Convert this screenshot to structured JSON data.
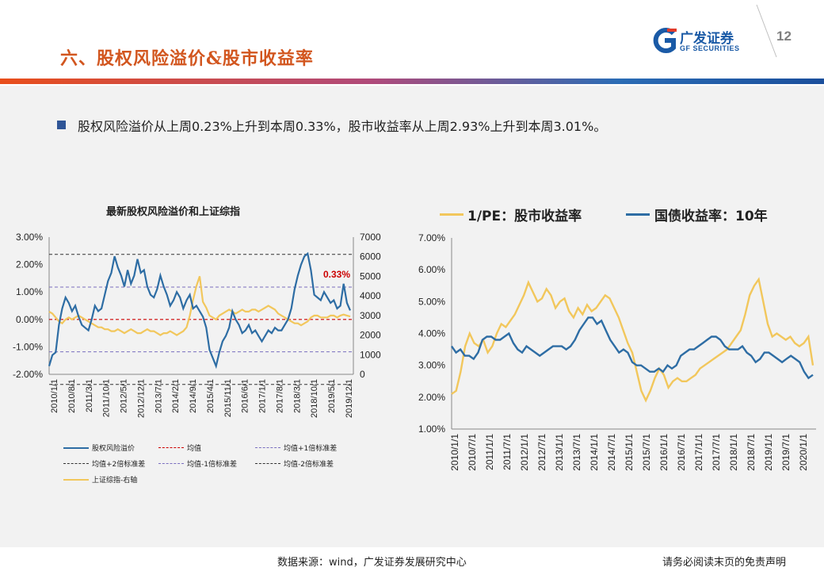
{
  "header": {
    "title": "六、股权风险溢价&股市收益率",
    "page_number": "12",
    "logo_cn": "广发证券",
    "logo_en": "GF SECURITIES"
  },
  "bullet": "股权风险溢价从上周0.23%上升到本周0.33%，股市收益率从上周2.93%上升到本周3.01%。",
  "footer": {
    "source": "数据来源：wind，广发证券发展研究中心",
    "disclaimer": "请务必阅读末页的免责声明"
  },
  "colors": {
    "blue": "#2e6da4",
    "yellow": "#f2c75c",
    "red": "#cc0000",
    "purple": "#7a6fbf",
    "black": "#333333",
    "title_orange": "#d2561f"
  },
  "chart_data": [
    {
      "type": "line",
      "title": "最新股权风险溢价和上证综指",
      "left_axis": {
        "ylim": [
          -0.02,
          0.03
        ],
        "ticks": [
          "-2.00%",
          "-1.00%",
          "0.00%",
          "1.00%",
          "2.00%",
          "3.00%"
        ]
      },
      "right_axis": {
        "ylim": [
          0,
          7000
        ],
        "ticks": [
          "0",
          "1000",
          "2000",
          "3000",
          "4000",
          "5000",
          "6000",
          "7000"
        ]
      },
      "x_ticks": [
        "2010/1/1",
        "2010/8/1",
        "2011/3/1",
        "2011/10/1",
        "2012/5/1",
        "2012/12/1",
        "2013/7/1",
        "2014/2/1",
        "2014/9/1",
        "2015/4/1",
        "2015/11/1",
        "2016/6/1",
        "2017/1/1",
        "2017/8/1",
        "2018/3/1",
        "2018/10/1",
        "2019/5/1",
        "2019/12/1"
      ],
      "annotation": "0.33%",
      "reference_lines": {
        "mean": 0.0,
        "plus1sd": 0.0118,
        "minus1sd": -0.0118,
        "plus2sd": 0.0237,
        "minus2sd": -0.0237
      },
      "legend": [
        "股权风险溢价",
        "均值",
        "均值+1倍标准差",
        "均值+2倍标准差",
        "均值-1倍标准差",
        "均值-2倍标准差",
        "上证综指-右轴"
      ],
      "series": [
        {
          "name": "股权风险溢价",
          "axis": "left",
          "values": [
            -0.017,
            -0.013,
            -0.012,
            -0.002,
            0.004,
            0.008,
            0.006,
            0.003,
            0.005,
            0.001,
            -0.002,
            -0.003,
            -0.004,
            0.0,
            0.005,
            0.003,
            0.004,
            0.009,
            0.014,
            0.017,
            0.023,
            0.019,
            0.016,
            0.012,
            0.018,
            0.013,
            0.016,
            0.022,
            0.017,
            0.018,
            0.012,
            0.009,
            0.008,
            0.011,
            0.016,
            0.012,
            0.009,
            0.005,
            0.007,
            0.01,
            0.008,
            0.004,
            0.007,
            0.009,
            0.004,
            0.005,
            0.003,
            0.001,
            -0.003,
            -0.011,
            -0.014,
            -0.017,
            -0.012,
            -0.008,
            -0.006,
            -0.003,
            0.003,
            0.0,
            -0.002,
            -0.005,
            -0.004,
            -0.002,
            -0.005,
            -0.004,
            -0.006,
            -0.008,
            -0.006,
            -0.004,
            -0.005,
            -0.003,
            -0.004,
            -0.004,
            -0.002,
            0.0,
            0.004,
            0.011,
            0.016,
            0.02,
            0.023,
            0.024,
            0.018,
            0.009,
            0.008,
            0.007,
            0.01,
            0.008,
            0.006,
            0.007,
            0.004,
            0.005,
            0.013,
            0.006,
            0.0033
          ]
        },
        {
          "name": "上证综指-右轴",
          "axis": "right",
          "values": [
            3200,
            3100,
            2900,
            2700,
            2600,
            2800,
            2900,
            2800,
            2900,
            3000,
            2900,
            2800,
            2700,
            2600,
            2500,
            2400,
            2400,
            2300,
            2300,
            2200,
            2200,
            2300,
            2200,
            2100,
            2200,
            2300,
            2200,
            2100,
            2100,
            2200,
            2300,
            2200,
            2200,
            2100,
            2000,
            2100,
            2100,
            2200,
            2100,
            2000,
            2100,
            2200,
            2400,
            3000,
            3800,
            4500,
            5000,
            3700,
            3400,
            3000,
            2900,
            2800,
            3000,
            3100,
            3200,
            3300,
            3200,
            3100,
            3200,
            3300,
            3200,
            3200,
            3300,
            3300,
            3200,
            3300,
            3400,
            3500,
            3400,
            3300,
            3100,
            3000,
            2900,
            2800,
            2700,
            2600,
            2600,
            2500,
            2600,
            2700,
            2900,
            3000,
            3000,
            2900,
            2900,
            2900,
            3000,
            3000,
            2900,
            3000,
            3050,
            3000,
            2950
          ]
        }
      ]
    },
    {
      "type": "line",
      "title": "",
      "ylim": [
        0.01,
        0.07
      ],
      "y_ticks": [
        "1.00%",
        "2.00%",
        "3.00%",
        "4.00%",
        "5.00%",
        "6.00%",
        "7.00%"
      ],
      "x_ticks": [
        "2010/1/1",
        "2010/7/1",
        "2011/1/1",
        "2011/7/1",
        "2012/1/1",
        "2012/7/1",
        "2013/1/1",
        "2013/7/1",
        "2014/1/1",
        "2014/7/1",
        "2015/1/1",
        "2015/7/1",
        "2016/1/1",
        "2016/7/1",
        "2017/1/1",
        "2017/7/1",
        "2018/1/1",
        "2018/7/1",
        "2019/1/1",
        "2019/7/1",
        "2020/1/1"
      ],
      "legend": [
        "1/PE：股市收益率",
        "国债收益率：10年"
      ],
      "series": [
        {
          "name": "1/PE：股市收益率",
          "values": [
            0.021,
            0.022,
            0.028,
            0.036,
            0.04,
            0.037,
            0.036,
            0.038,
            0.034,
            0.036,
            0.04,
            0.043,
            0.042,
            0.044,
            0.046,
            0.049,
            0.052,
            0.056,
            0.053,
            0.05,
            0.051,
            0.054,
            0.052,
            0.048,
            0.05,
            0.051,
            0.047,
            0.045,
            0.048,
            0.046,
            0.049,
            0.047,
            0.048,
            0.05,
            0.052,
            0.051,
            0.048,
            0.045,
            0.041,
            0.037,
            0.034,
            0.028,
            0.022,
            0.019,
            0.022,
            0.026,
            0.029,
            0.027,
            0.023,
            0.025,
            0.026,
            0.025,
            0.025,
            0.026,
            0.027,
            0.029,
            0.03,
            0.031,
            0.032,
            0.033,
            0.034,
            0.035,
            0.037,
            0.039,
            0.041,
            0.046,
            0.052,
            0.055,
            0.057,
            0.05,
            0.043,
            0.039,
            0.04,
            0.039,
            0.038,
            0.039,
            0.037,
            0.036,
            0.037,
            0.039,
            0.03
          ]
        },
        {
          "name": "国债收益率：10年",
          "values": [
            0.036,
            0.034,
            0.035,
            0.033,
            0.033,
            0.032,
            0.034,
            0.038,
            0.039,
            0.039,
            0.038,
            0.038,
            0.039,
            0.04,
            0.037,
            0.035,
            0.034,
            0.036,
            0.035,
            0.034,
            0.033,
            0.034,
            0.035,
            0.036,
            0.036,
            0.036,
            0.035,
            0.036,
            0.038,
            0.041,
            0.043,
            0.045,
            0.045,
            0.043,
            0.044,
            0.041,
            0.038,
            0.036,
            0.034,
            0.035,
            0.034,
            0.031,
            0.03,
            0.03,
            0.029,
            0.028,
            0.028,
            0.029,
            0.028,
            0.03,
            0.029,
            0.03,
            0.033,
            0.034,
            0.035,
            0.035,
            0.036,
            0.037,
            0.038,
            0.039,
            0.039,
            0.038,
            0.036,
            0.035,
            0.035,
            0.035,
            0.036,
            0.034,
            0.033,
            0.031,
            0.032,
            0.034,
            0.034,
            0.033,
            0.032,
            0.031,
            0.032,
            0.033,
            0.032,
            0.031,
            0.028,
            0.026,
            0.027
          ]
        }
      ]
    }
  ]
}
